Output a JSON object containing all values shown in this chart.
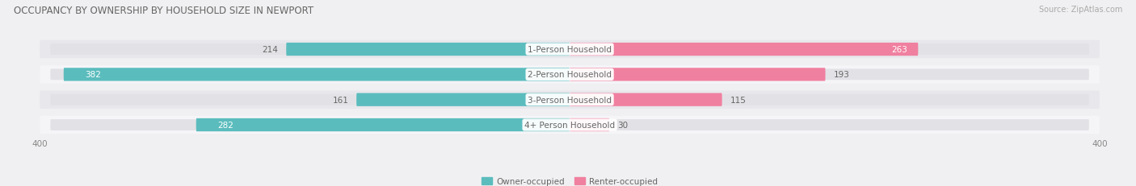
{
  "title": "OCCUPANCY BY OWNERSHIP BY HOUSEHOLD SIZE IN NEWPORT",
  "source": "Source: ZipAtlas.com",
  "categories": [
    "1-Person Household",
    "2-Person Household",
    "3-Person Household",
    "4+ Person Household"
  ],
  "owner_values": [
    214,
    382,
    161,
    282
  ],
  "renter_values": [
    263,
    193,
    115,
    30
  ],
  "owner_color": "#5bbcbd",
  "renter_color": "#f080a0",
  "axis_max": 400,
  "background_color": "#f0f0f2",
  "row_colors": [
    "#e8e8ec",
    "#f5f5f8",
    "#e8e8ec",
    "#f5f5f8"
  ],
  "track_color": "#e2e2e6",
  "bar_height": 0.52,
  "title_fontsize": 8.5,
  "label_fontsize": 7.5,
  "value_fontsize": 7.5,
  "tick_fontsize": 7.5,
  "legend_fontsize": 7.5,
  "source_fontsize": 7
}
